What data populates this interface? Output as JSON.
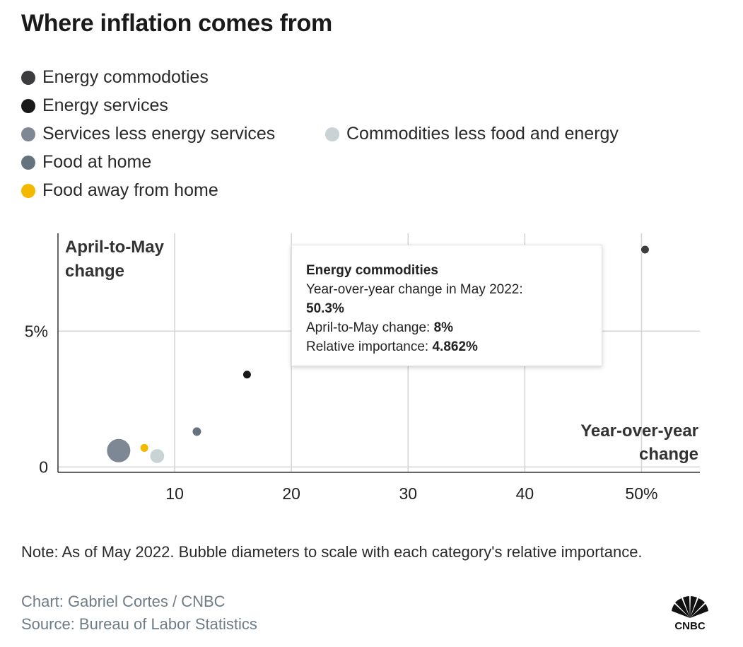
{
  "title": "Where inflation comes from",
  "legend": [
    {
      "label": "Energy commodoties",
      "color": "#3d3d3f"
    },
    {
      "label": "Energy services",
      "color": "#1a1a1a"
    },
    {
      "label": "Services less energy services",
      "color": "#7d8894"
    },
    {
      "label": "Commodities less food and energy",
      "color": "#c9d3d6"
    },
    {
      "label": "Food at home",
      "color": "#65737f"
    },
    {
      "label": "Food away from home",
      "color": "#f5b800"
    }
  ],
  "chart_data": {
    "type": "scatter",
    "xlabel": "Year-over-year change",
    "ylabel": "April-to-May change",
    "xlim": [
      0,
      55
    ],
    "ylim": [
      -0.2,
      8.6
    ],
    "x_ticks": [
      10,
      20,
      30,
      40,
      50
    ],
    "x_tick_labels": [
      "10",
      "20",
      "30",
      "40",
      "50%"
    ],
    "y_ticks": [
      0,
      5
    ],
    "y_tick_labels": [
      "0",
      "5%"
    ],
    "grid": true,
    "series": [
      {
        "name": "Energy commodoties",
        "x": 50.3,
        "y": 8,
        "importance": 4.862
      },
      {
        "name": "Energy services",
        "x": 16.2,
        "y": 3.4,
        "importance": 3.4
      },
      {
        "name": "Services less energy services",
        "x": 5.2,
        "y": 0.6,
        "importance": 57.3
      },
      {
        "name": "Commodities less food and energy",
        "x": 8.5,
        "y": 0.4,
        "importance": 21.3
      },
      {
        "name": "Food at home",
        "x": 11.9,
        "y": 1.3,
        "importance": 8.3
      },
      {
        "name": "Food away from home",
        "x": 7.4,
        "y": 0.7,
        "importance": 5.1
      }
    ]
  },
  "tooltip": {
    "title": "Energy commodities",
    "yoy_label": "Year-over-year change in May 2022:",
    "yoy_value": "50.3%",
    "mom_label": "April-to-May change:",
    "mom_value": "8%",
    "importance_label": "Relative importance:",
    "importance_value": "4.862%"
  },
  "note": "Note: As of May 2022. Bubble diameters to scale with each category's relative importance.",
  "credit": "Chart: Gabriel Cortes / CNBC",
  "source": "Source: Bureau of Labor Statistics",
  "logo_text": "CNBC"
}
